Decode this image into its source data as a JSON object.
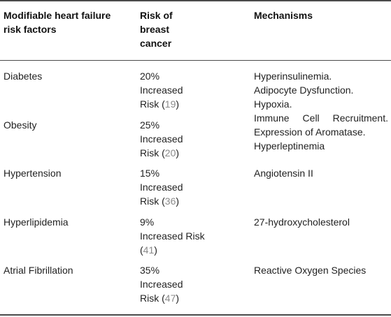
{
  "headers": {
    "factor": "Modifiable heart failure risk factors",
    "risk": "Risk of breast cancer",
    "mechanisms": "Mechanisms"
  },
  "rows": [
    {
      "factor": "Diabetes",
      "risk_pct": "20%",
      "risk_text": "Increased Risk",
      "ref": "19"
    },
    {
      "factor": "Obesity",
      "risk_pct": "25%",
      "risk_text": "Increased Risk",
      "ref": "20"
    },
    {
      "factor": "Hypertension",
      "risk_pct": "15%",
      "risk_text": "Increased Risk",
      "ref": "36"
    },
    {
      "factor": "Hyperlipidemia",
      "risk_pct": "9%",
      "risk_text": "Increased Risk",
      "ref": "41"
    },
    {
      "factor": "Atrial Fibrillation",
      "risk_pct": "35%",
      "risk_text": "Increased Risk",
      "ref": "47"
    }
  ],
  "mechanisms": {
    "diabetes_obesity": [
      "Hyperinsulinemia.",
      "Adipocyte Dysfunction.",
      "Hypoxia.",
      "Immune Cell Recruitment.",
      "Expression of Aromatase.",
      "Hyperleptinemia"
    ],
    "hypertension": "Angiotensin II",
    "hyperlipidemia": "27-hydroxycholesterol",
    "atrial_fibrillation": "Reactive Oxygen Species"
  },
  "colors": {
    "text": "#222222",
    "reference": "#8a8a8a",
    "rule": "#4a4a4a"
  }
}
